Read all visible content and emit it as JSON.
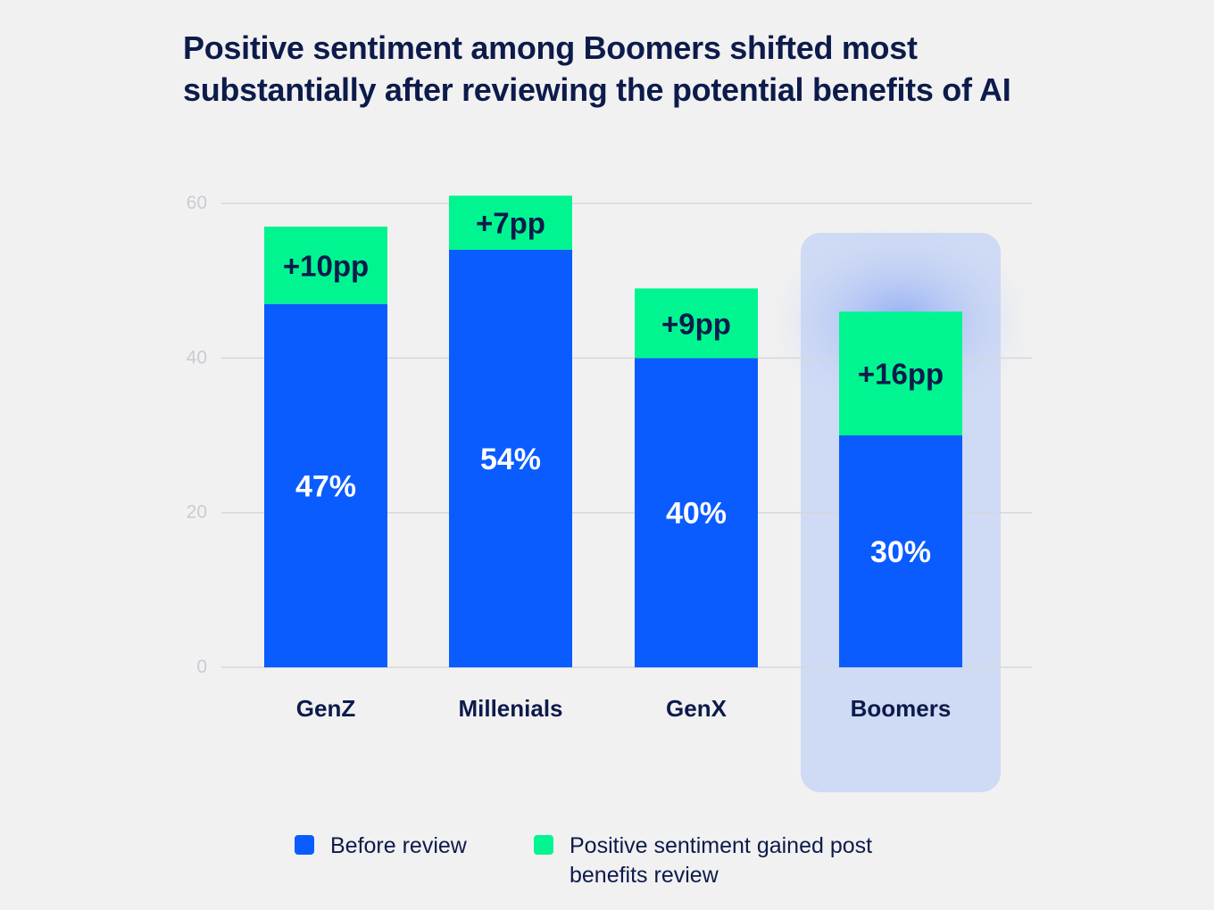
{
  "chart_data": {
    "type": "bar",
    "stacked": true,
    "title": "Positive sentiment among Boomers shifted most substantially after reviewing the potential benefits of AI",
    "categories": [
      "GenZ",
      "Millenials",
      "GenX",
      "Boomers"
    ],
    "series": [
      {
        "name": "Before review",
        "values": [
          47,
          54,
          40,
          30
        ],
        "labels": [
          "47%",
          "54%",
          "40%",
          "30%"
        ],
        "color": "#0a5cff"
      },
      {
        "name": "Positive sentiment gained post benefits review",
        "values": [
          10,
          7,
          9,
          16
        ],
        "labels": [
          "+10pp",
          "+7pp",
          "+9pp",
          "+16pp"
        ],
        "color": "#00f591"
      }
    ],
    "yticks": [
      0,
      20,
      40,
      60
    ],
    "ylim": [
      0,
      60
    ],
    "grid": true,
    "highlighted_category": "Boomers",
    "highlight_color": "#cfdaf4",
    "legend_position": "bottom"
  }
}
